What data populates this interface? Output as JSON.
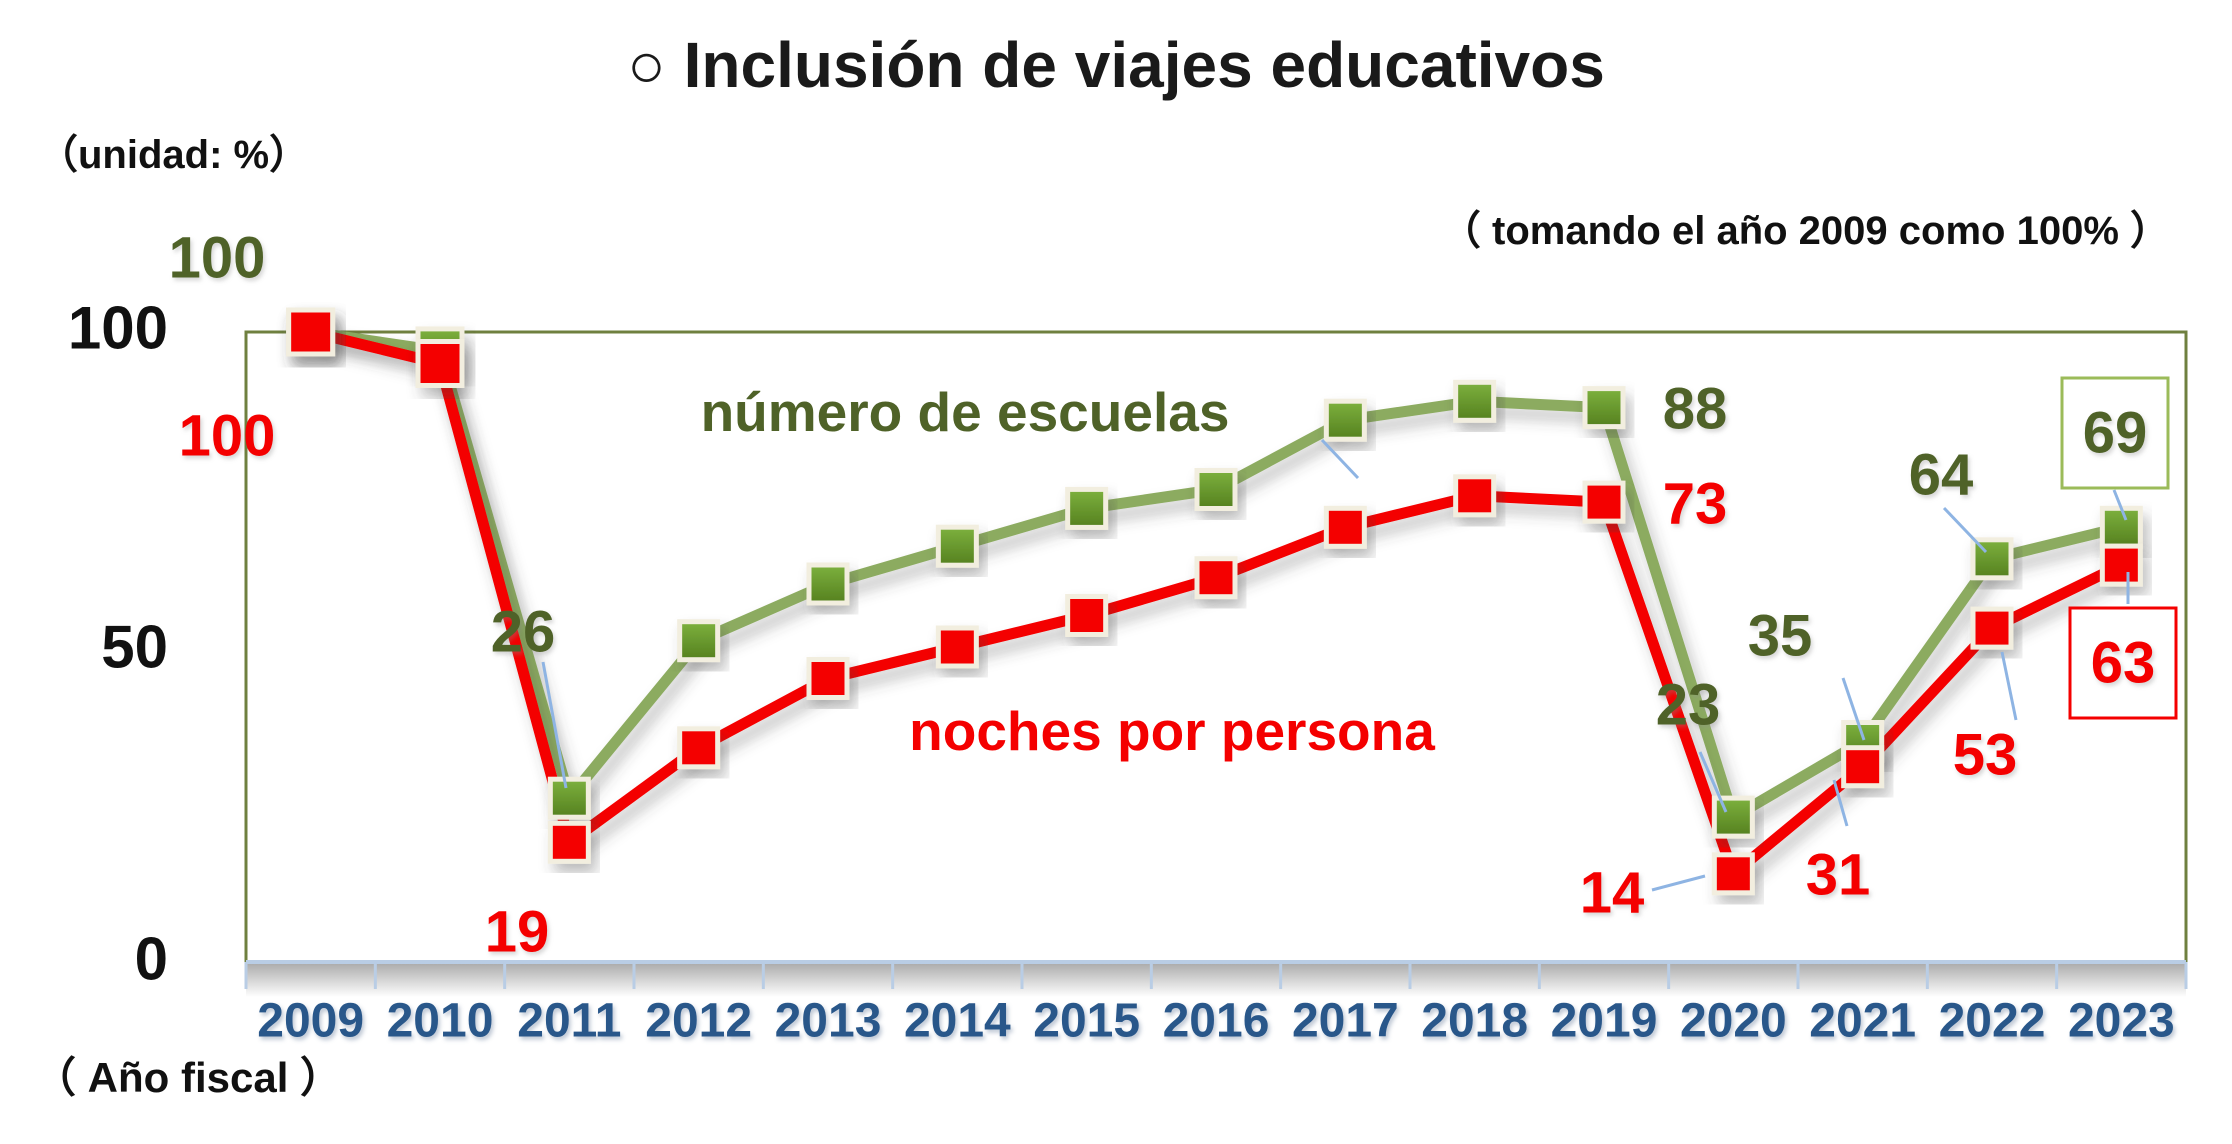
{
  "title": "○ Inclusión de viajes educativos",
  "unit_label": "（unidad: %）",
  "baseline_note": "（ tomando el año 2009 como 100% ）",
  "xaxis_caption": "（ Año fiscal ）",
  "colors": {
    "green_line": "#8CAB60",
    "green_marker_light": "#7DB13E",
    "green_marker_dark": "#55801F",
    "green_text": "#4F6228",
    "red": "#F40000",
    "marker_border": "#F2EEDF",
    "year_label": "#29578A",
    "callout": "#8EB4E3",
    "axis_line": "#B9CDE5",
    "plot_border": "#6F803F",
    "box_green_border": "#9BBB59"
  },
  "chart_data": {
    "type": "line",
    "x": [
      "2009",
      "2010",
      "2011",
      "2012",
      "2013",
      "2014",
      "2015",
      "2016",
      "2017",
      "2018",
      "2019",
      "2020",
      "2021",
      "2022",
      "2023"
    ],
    "series": [
      {
        "name": "número de escuelas",
        "values": [
          100,
          97,
          26,
          51,
          60,
          66,
          72,
          75,
          86,
          89,
          88,
          23,
          35,
          64,
          69
        ]
      },
      {
        "name": "noches por persona",
        "values": [
          100,
          95,
          19,
          34,
          45,
          50,
          55,
          61,
          69,
          74,
          73,
          14,
          31,
          53,
          63
        ]
      }
    ],
    "ylabel_ticks": [
      "100",
      "50",
      "0"
    ],
    "ylim": [
      0,
      100
    ],
    "grid": false,
    "legend_position": "inline-labels",
    "title": "○ Inclusión de viajes educativos",
    "xlabel": "（ Año fiscal ）",
    "ylabel": "（unidad: %）",
    "annotation_note": "（ tomando el año 2009 como 100% ）",
    "labeled_points": [
      {
        "series": 0,
        "x": "2009",
        "label": "100"
      },
      {
        "series": 0,
        "x": "2011",
        "label": "26"
      },
      {
        "series": 0,
        "x": "2019",
        "label": "88"
      },
      {
        "series": 0,
        "x": "2020",
        "label": "23"
      },
      {
        "series": 0,
        "x": "2021",
        "label": "35"
      },
      {
        "series": 0,
        "x": "2022",
        "label": "64"
      },
      {
        "series": 0,
        "x": "2023",
        "label": "69",
        "boxed": true
      },
      {
        "series": 1,
        "x": "2009",
        "label": "100"
      },
      {
        "series": 1,
        "x": "2011",
        "label": "19"
      },
      {
        "series": 1,
        "x": "2019",
        "label": "73"
      },
      {
        "series": 1,
        "x": "2020",
        "label": "14"
      },
      {
        "series": 1,
        "x": "2021",
        "label": "31"
      },
      {
        "series": 1,
        "x": "2022",
        "label": "53"
      },
      {
        "series": 1,
        "x": "2023",
        "label": "63",
        "boxed": true
      }
    ]
  }
}
